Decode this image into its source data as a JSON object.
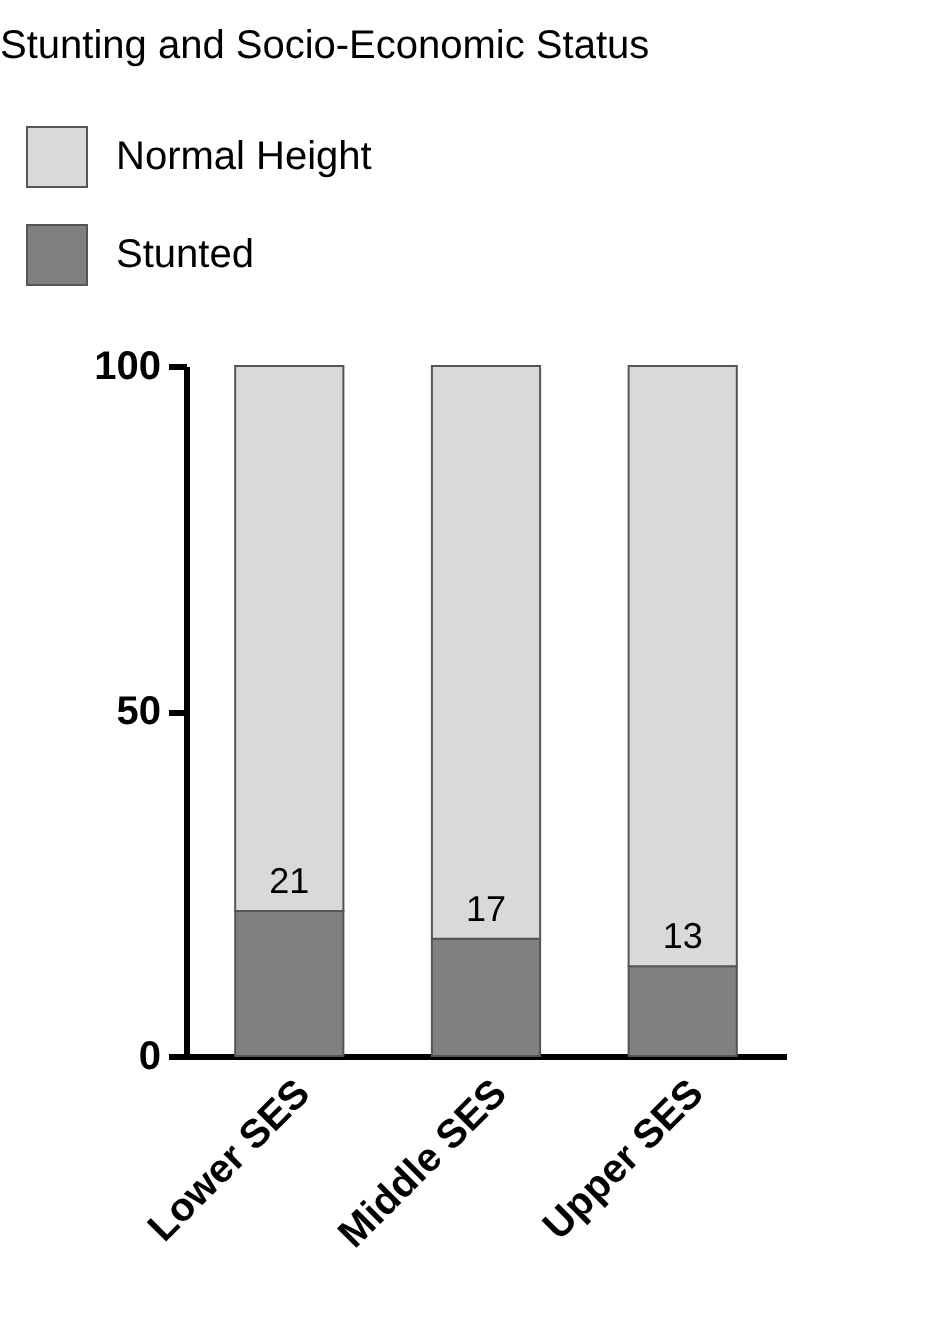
{
  "chart_data": {
    "type": "bar",
    "title": "Stunting and Socio-Economic Status",
    "categories": [
      "Lower SES",
      "Middle SES",
      "Upper SES"
    ],
    "stacked": true,
    "legend": "top left",
    "series": [
      {
        "name": "Stunted",
        "color": "#808080",
        "values": [
          21,
          17,
          13
        ],
        "value_labels": [
          "21",
          "17",
          "13"
        ]
      },
      {
        "name": "Normal Height",
        "color": "#d9d9d9",
        "values": [
          79,
          83,
          87
        ]
      }
    ],
    "ylim": [
      0,
      100
    ],
    "yticks": [
      0,
      50,
      100
    ],
    "grid": false
  }
}
